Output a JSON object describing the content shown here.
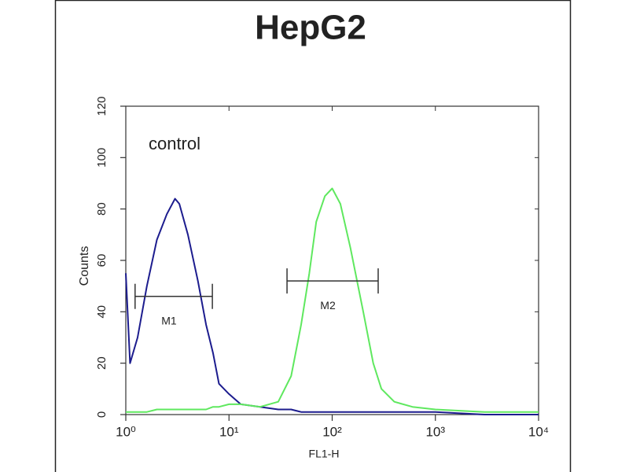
{
  "chart_data": {
    "type": "line",
    "title": "HepG2",
    "annotation": "control",
    "xlabel": "FL1-H",
    "ylabel": "Counts",
    "xscale": "log",
    "x": [
      1,
      1.1,
      1.3,
      1.6,
      2,
      2.5,
      3,
      3.3,
      4,
      5,
      6,
      7,
      8,
      10,
      13,
      20,
      30,
      40,
      50,
      60,
      70,
      85,
      100,
      120,
      150,
      200,
      250,
      300,
      400,
      600,
      1000,
      3000,
      10000
    ],
    "series": [
      {
        "color": "#1c1c8e",
        "values": [
          55,
          20,
          30,
          50,
          68,
          78,
          84,
          82,
          70,
          52,
          35,
          24,
          12,
          8,
          4,
          3,
          2,
          2,
          1,
          1,
          1,
          1,
          1,
          1,
          1,
          1,
          1,
          1,
          1,
          1,
          1,
          0,
          0
        ]
      },
      {
        "color": "#5fe85f",
        "values": [
          1,
          1,
          1,
          1,
          2,
          2,
          2,
          2,
          2,
          2,
          2,
          3,
          3,
          4,
          4,
          3,
          5,
          15,
          35,
          55,
          75,
          85,
          88,
          82,
          65,
          40,
          20,
          10,
          5,
          3,
          2,
          1,
          1
        ]
      }
    ],
    "markers": [
      {
        "label": "M1",
        "range": [
          1.23,
          6.9
        ],
        "y": 46
      },
      {
        "label": "M2",
        "range": [
          36.5,
          279
        ],
        "y": 52
      }
    ],
    "xlim": [
      1,
      10000
    ],
    "xticks": [
      {
        "value": 1,
        "label": "10⁰"
      },
      {
        "value": 10,
        "label": "10¹"
      },
      {
        "value": 100,
        "label": "10²"
      },
      {
        "value": 1000,
        "label": "10³"
      },
      {
        "value": 10000,
        "label": "10⁴"
      }
    ],
    "ylim": [
      0,
      120
    ],
    "yticks": [
      0,
      20,
      40,
      60,
      80,
      100,
      120
    ]
  }
}
